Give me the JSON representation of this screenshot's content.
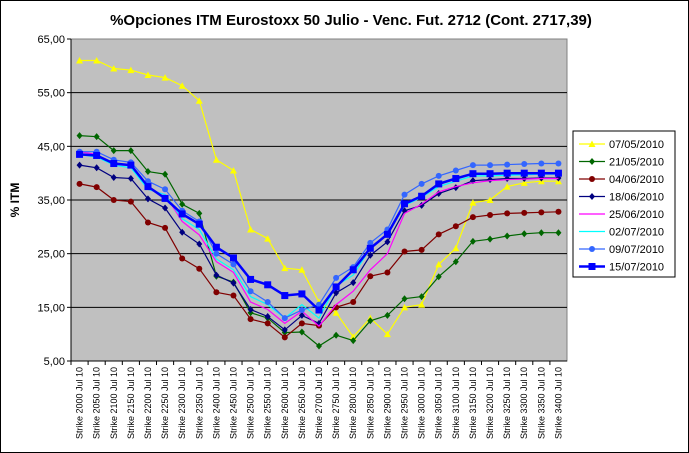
{
  "chart_data": {
    "type": "line",
    "title": "%Opciones ITM Eurostoxx 50 Julio - Venc. Fut. 2712 (Cont. 2717,39)",
    "ylabel": "% ITM",
    "xlabel": "",
    "ylim": [
      5,
      65
    ],
    "yticks": [
      "5,00",
      "15,00",
      "25,00",
      "35,00",
      "45,00",
      "55,00",
      "65,00"
    ],
    "ytick_values": [
      5,
      15,
      25,
      35,
      45,
      55,
      65
    ],
    "grid": "horizontal",
    "legend_position": "right",
    "plot_background": "#c0c0c0",
    "categories": [
      "Strike 2000 Jul 10",
      "Strike 2050 Jul 10",
      "Strike 2100 Jul 10",
      "Strike 2150 Jul 10",
      "Strike 2200 Jul 10",
      "Strike 2250 Jul 10",
      "Strike 2300 Jul 10",
      "Strike 2350 Jul 10",
      "Strike 2400 Jul 10",
      "Strike 2450 Jul 10",
      "Strike 2500 Jul 10",
      "Strike 2550 Jul 10",
      "Strike 2600 Jul 10",
      "Strike 2650 Jul 10",
      "Strike 2700 Jul 10",
      "Strike 2750 Jul 10",
      "Strike 2800 Jul 10",
      "Strike 2850 Jul 10",
      "Strike 2900 Jul 10",
      "Strike 2950 Jul 10",
      "Strike 3000 Jul 10",
      "Strike 3050 Jul 10",
      "Strike 3100 Jul 10",
      "Strike 3150 Jul 10",
      "Strike 3200 Jul 10",
      "Strike 3250 Jul 10",
      "Strike 3300 Jul 10",
      "Strike 3350 Jul 10",
      "Strike 3400 Jul 10"
    ],
    "series": [
      {
        "name": "07/05/2010",
        "color": "#ffff00",
        "marker": "triangle",
        "values": [
          61,
          61,
          59.5,
          59.2,
          58.3,
          57.8,
          56.3,
          53.5,
          42.5,
          40.5,
          29.5,
          27.8,
          22.3,
          22,
          16,
          14,
          9.5,
          13,
          10,
          15,
          15.5,
          23,
          26,
          34.5,
          35,
          37.5,
          38.2,
          38.5,
          38.5
        ]
      },
      {
        "name": "21/05/2010",
        "color": "#006600",
        "marker": "diamond",
        "values": [
          47,
          46.8,
          44.2,
          44.2,
          40.3,
          39.8,
          34.2,
          32.5,
          20.8,
          19.7,
          14,
          13,
          10.3,
          10.4,
          7.8,
          9.8,
          8.8,
          12.5,
          13.5,
          16.6,
          17,
          20.7,
          23.5,
          27.3,
          27.7,
          28.3,
          28.7,
          28.9,
          28.9
        ]
      },
      {
        "name": "04/06/2010",
        "color": "#800000",
        "marker": "circle",
        "values": [
          38,
          37.4,
          35,
          34.7,
          30.8,
          29.8,
          24.1,
          22.2,
          17.8,
          17.2,
          12.8,
          12,
          9.4,
          12,
          11.6,
          15,
          16,
          20.8,
          21.5,
          25.4,
          25.7,
          28.6,
          30.1,
          31.8,
          32.2,
          32.5,
          32.6,
          32.7,
          32.8
        ]
      },
      {
        "name": "18/06/2010",
        "color": "#000080",
        "marker": "diamond",
        "values": [
          41.5,
          41,
          39.2,
          39,
          35.2,
          33.5,
          29,
          26.8,
          21,
          19.5,
          14.6,
          13.3,
          10.8,
          13.5,
          12,
          17.7,
          19.6,
          24.7,
          27.2,
          33,
          34,
          36.2,
          37.3,
          38.6,
          38.8,
          39,
          39,
          39.1,
          39.1
        ]
      },
      {
        "name": "25/06/2010",
        "color": "#ff00ff",
        "marker": "none",
        "values": [
          44,
          43.5,
          41.5,
          41.5,
          37,
          36,
          31,
          28.5,
          23.5,
          21.5,
          16,
          14.6,
          12,
          14.3,
          11.5,
          15.5,
          18,
          22,
          25,
          32.5,
          34.2,
          36.5,
          37.5,
          38.2,
          38.6,
          38.8,
          38.9,
          39,
          39
        ]
      },
      {
        "name": "02/07/2010",
        "color": "#00ffff",
        "marker": "none",
        "values": [
          43.5,
          43,
          41.5,
          41,
          37,
          36,
          31.5,
          29.5,
          24,
          22,
          17,
          15.5,
          13,
          15.5,
          13,
          19,
          21,
          26,
          28.5,
          34,
          35.5,
          37.5,
          38.5,
          39.5,
          39.5,
          39.6,
          39.7,
          39.8,
          39.8
        ]
      },
      {
        "name": "09/07/2010",
        "color": "#3366ff",
        "marker": "circle",
        "values": [
          44,
          44,
          42.5,
          42,
          38.5,
          37,
          33,
          31,
          25,
          23,
          18,
          16,
          13,
          14.5,
          15.5,
          20.5,
          22.5,
          27,
          29.5,
          36,
          38,
          39.5,
          40.5,
          41.5,
          41.5,
          41.6,
          41.7,
          41.8,
          41.8
        ]
      },
      {
        "name": "15/07/2010",
        "color": "#0000ff",
        "marker": "square",
        "values": [
          43.5,
          43.3,
          41.8,
          41.5,
          37.5,
          35.3,
          32.4,
          30.5,
          26.2,
          24.2,
          20.2,
          19.2,
          17.2,
          17.5,
          14.5,
          18.8,
          22,
          26,
          28.6,
          34.3,
          35.7,
          38,
          39,
          39.9,
          39.9,
          40,
          40,
          40,
          40
        ]
      }
    ]
  }
}
